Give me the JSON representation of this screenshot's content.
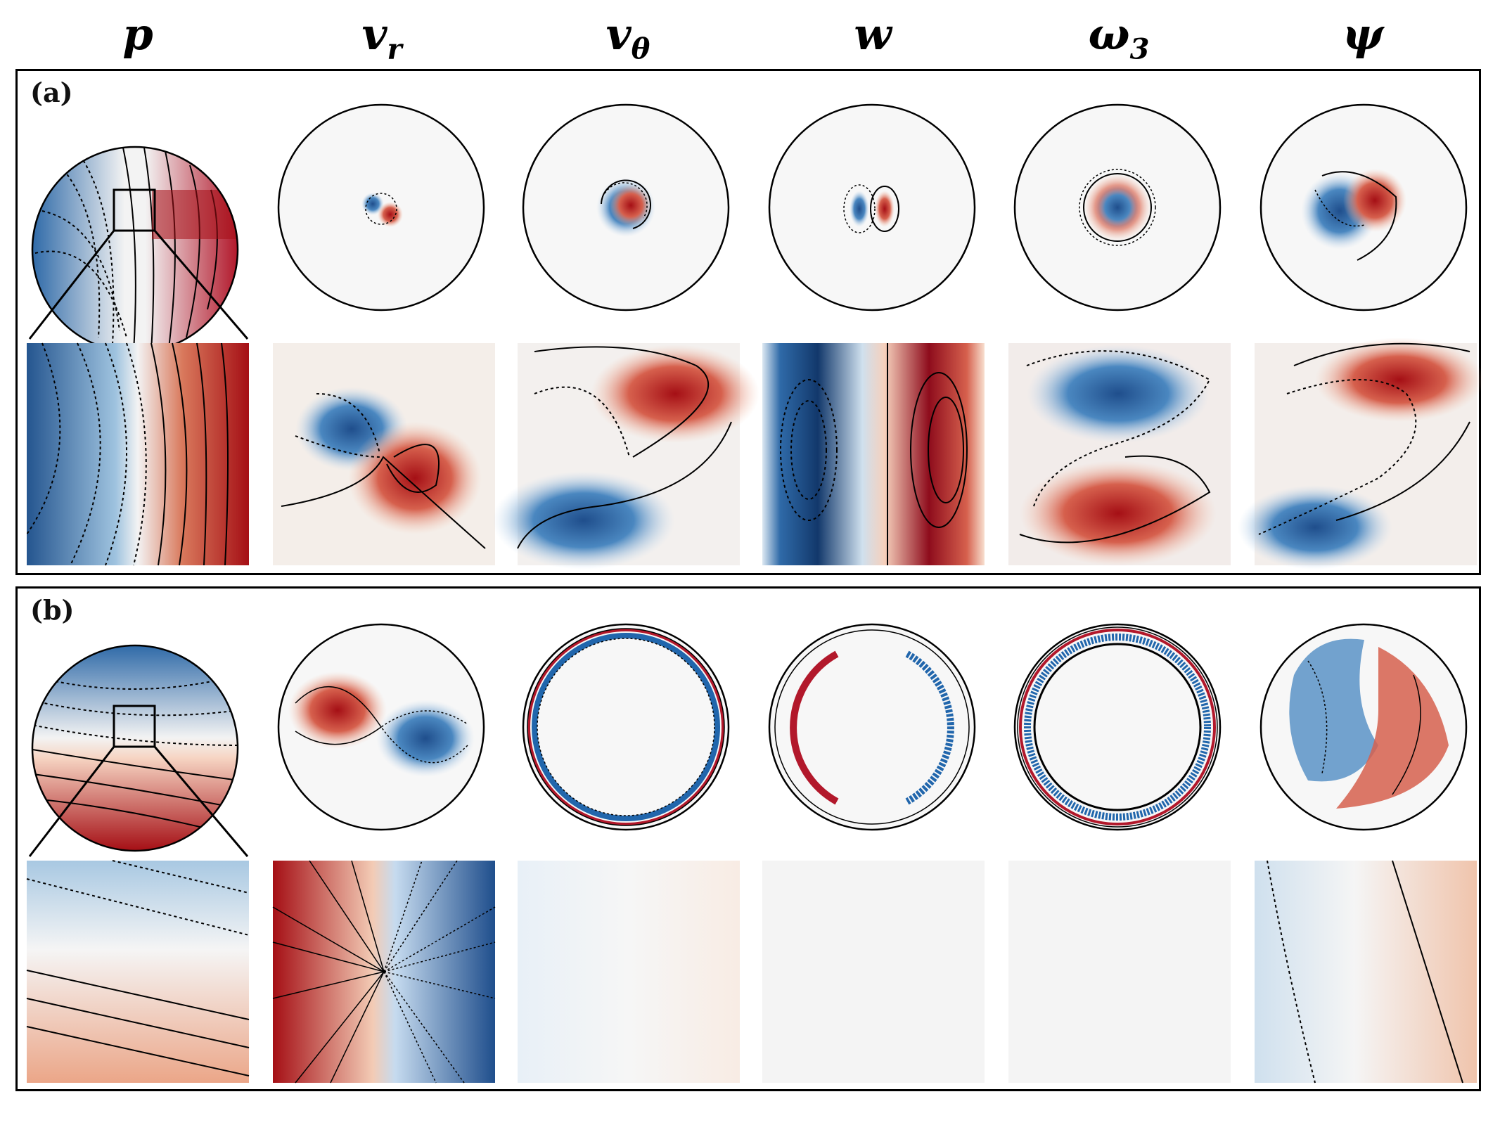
{
  "figure": {
    "columns": [
      {
        "key": "p",
        "label": "p",
        "sub": ""
      },
      {
        "key": "vr",
        "label": "v",
        "sub": "r"
      },
      {
        "key": "vtheta",
        "label": "v",
        "sub": "θ"
      },
      {
        "key": "w",
        "label": "w",
        "sub": ""
      },
      {
        "key": "omega3",
        "label": "ω",
        "sub": "3"
      },
      {
        "key": "psi",
        "label": "ψ",
        "sub": ""
      }
    ],
    "panels": [
      {
        "label": "(a)"
      },
      {
        "label": "(b)"
      }
    ],
    "colors": {
      "positive": "#b2182b",
      "negative": "#2166ac",
      "neutral": "#f7f7f7",
      "contour": "#000000"
    }
  }
}
